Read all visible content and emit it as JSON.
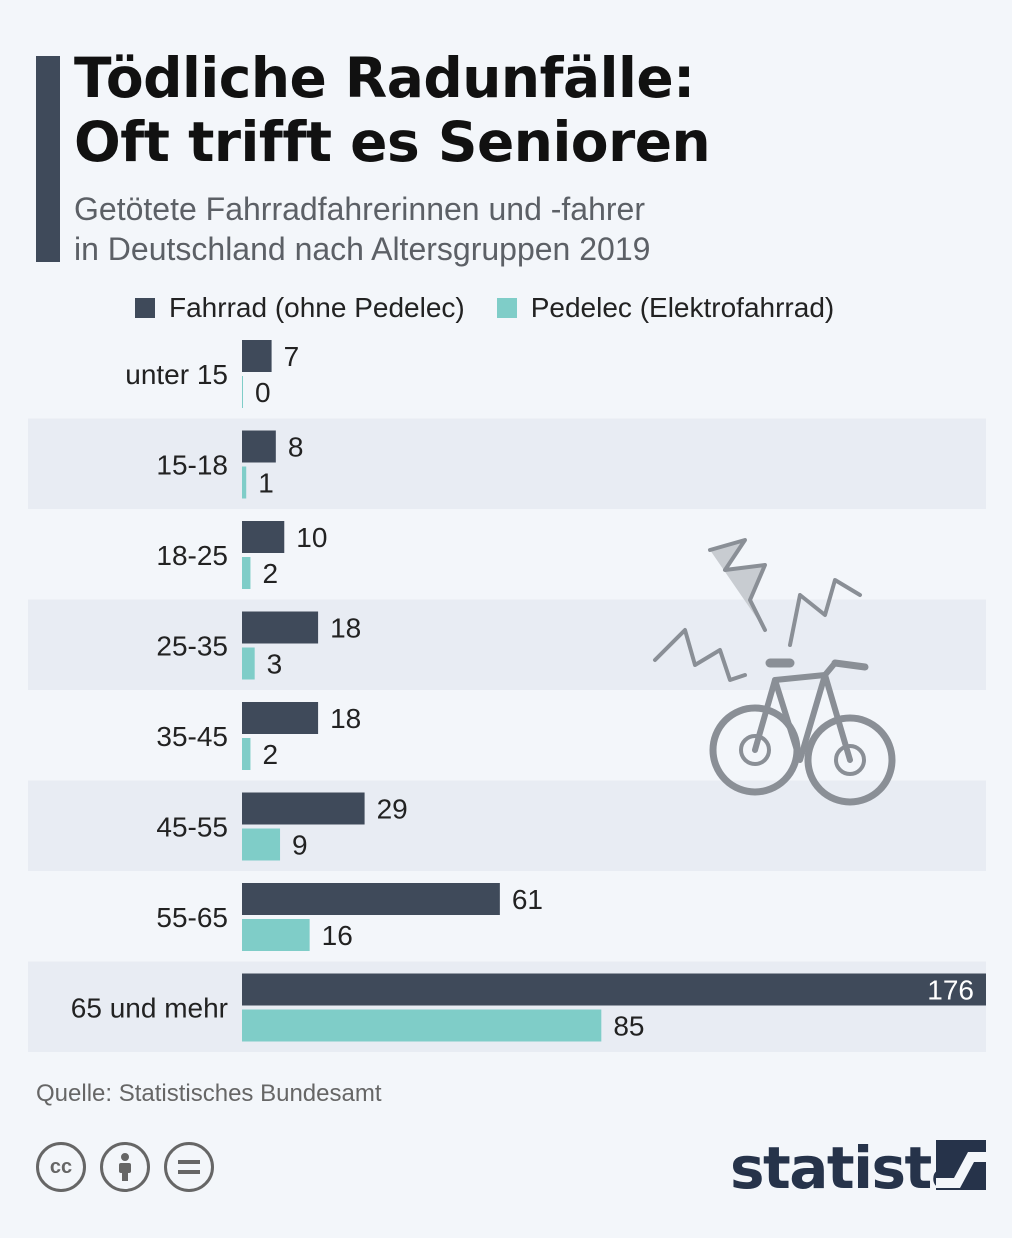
{
  "title": [
    "Tödliche Radunfälle:",
    "Oft trifft es Senioren"
  ],
  "subtitle": [
    "Getötete Fahrradfahrerinnen und -fahrer",
    "in Deutschland nach Altersgruppen 2019"
  ],
  "source": "Quelle: Statistisches Bundesamt",
  "brand": "statista",
  "license_icons": [
    "cc-icon",
    "by-attribution-icon",
    "no-derivatives-icon"
  ],
  "colors": {
    "fahrrad": "#3f4a5a",
    "pedelec": "#7fcdc8",
    "band": "#e8ecf3"
  },
  "chart_data": {
    "type": "bar",
    "orientation": "horizontal",
    "categories": [
      "unter 15",
      "15-18",
      "18-25",
      "25-35",
      "35-45",
      "45-55",
      "55-65",
      "65 und mehr"
    ],
    "series": [
      {
        "name": "Fahrrad (ohne Pedelec)",
        "values": [
          7,
          8,
          10,
          18,
          18,
          29,
          61,
          176
        ]
      },
      {
        "name": "Pedelec (Elektrofahrrad)",
        "values": [
          0,
          1,
          2,
          3,
          2,
          9,
          16,
          85
        ]
      }
    ],
    "xlim": [
      0,
      176
    ],
    "grid": false,
    "legend": "top"
  }
}
